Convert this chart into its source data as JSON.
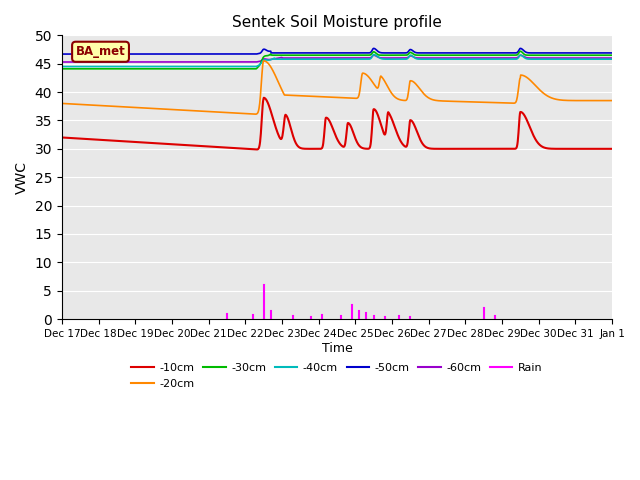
{
  "title": "Sentek Soil Moisture profile",
  "xlabel": "Time",
  "ylabel": "VWC",
  "label_text": "BA_met",
  "ylim": [
    0,
    50
  ],
  "bg_color": "#e8e8e8",
  "fig_bg_color": "#ffffff",
  "tick_labels": [
    "Dec 17",
    "Dec 18",
    "Dec 19",
    "Dec 20",
    "Dec 21",
    "Dec 22",
    "Dec 23",
    "Dec 24",
    "Dec 25",
    "Dec 26",
    "Dec 27",
    "Dec 28",
    "Dec 29",
    "Dec 30",
    "Dec 31",
    "Jan 1"
  ],
  "tick_positions": [
    0,
    1,
    2,
    3,
    4,
    5,
    6,
    7,
    8,
    9,
    10,
    11,
    12,
    13,
    14,
    15
  ],
  "series_colors": {
    "-10cm": "#dd0000",
    "-20cm": "#ff8800",
    "-30cm": "#00bb00",
    "-40cm": "#00bbbb",
    "-50cm": "#0000cc",
    "-60cm": "#9900cc"
  },
  "rain_color": "#ff00ff",
  "legend_order": [
    "-10cm",
    "-20cm",
    "-30cm",
    "-40cm",
    "-50cm",
    "-60cm",
    "Rain"
  ]
}
